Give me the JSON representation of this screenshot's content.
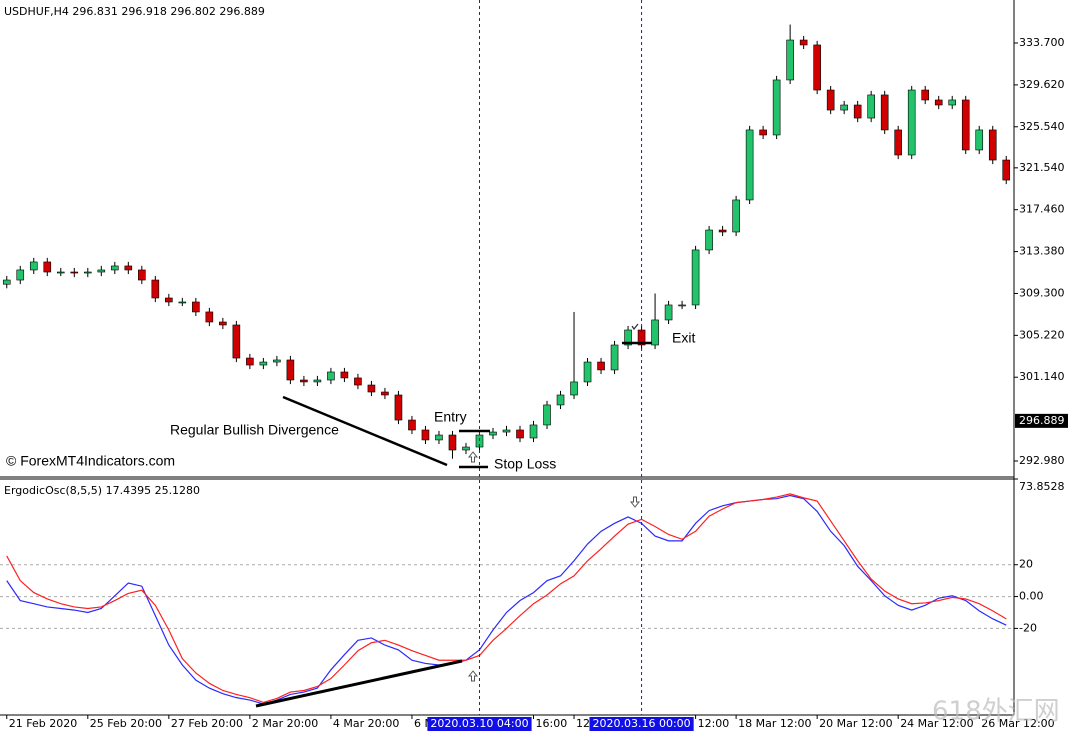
{
  "chart_data": [
    {
      "type": "candlestick",
      "title": "USDHUF,H4  296.831 296.918 296.802 296.889",
      "x": [
        "21 Feb 2020",
        null,
        null,
        null,
        null,
        null,
        "25 Feb 20:00",
        null,
        null,
        null,
        null,
        null,
        "27 Feb 20:00",
        null,
        null,
        null,
        null,
        null,
        "2 Mar 20:00",
        null,
        null,
        null,
        null,
        null,
        "4 Mar 20:00",
        null,
        null,
        null,
        null,
        null,
        "6 M",
        null,
        null,
        null,
        null,
        "2020.03.10 04:00",
        null,
        null,
        null,
        "16:00",
        null,
        null,
        "12",
        null,
        null,
        null,
        null,
        "2020.03.16 00:00",
        null,
        null,
        null,
        "12:00",
        null,
        null,
        "18 Mar 12:00",
        null,
        null,
        null,
        null,
        null,
        "20 Mar 12:00",
        null,
        null,
        null,
        null,
        null,
        "24 Mar 12:00",
        null,
        null,
        null,
        null,
        null,
        "26 Mar 12:00",
        null,
        null
      ],
      "cursor": [
        "2020.03.10 04:00",
        "2020.03.16 00:00"
      ],
      "open": [
        310.2,
        310.61,
        311.59,
        312.37,
        311.39,
        311.39,
        311.29,
        311.39,
        311.59,
        311.98,
        311.59,
        310.61,
        308.86,
        308.47,
        308.47,
        307.5,
        306.52,
        306.23,
        303.01,
        302.33,
        302.62,
        302.82,
        300.87,
        300.68,
        300.87,
        301.65,
        301.07,
        300.38,
        299.7,
        299.41,
        296.97,
        296.0,
        295.03,
        295.51,
        294.05,
        294.34,
        295.51,
        295.8,
        296.0,
        295.22,
        296.49,
        298.44,
        299.41,
        300.68,
        302.62,
        301.85,
        304.28,
        305.74,
        304.28,
        306.72,
        308.18,
        308.18,
        313.54,
        315.48,
        315.29,
        318.41,
        325.23,
        324.74,
        330.1,
        333.99,
        333.51,
        329.12,
        327.17,
        327.66,
        326.39,
        328.64,
        325.23,
        322.79,
        329.12,
        328.15,
        327.66,
        328.15,
        323.28,
        325.23,
        322.3
      ],
      "high": [
        311.01,
        311.99,
        312.77,
        312.77,
        311.79,
        311.79,
        311.79,
        311.99,
        312.38,
        312.38,
        311.99,
        311.01,
        309.26,
        308.87,
        308.87,
        307.9,
        306.92,
        306.63,
        303.41,
        303.02,
        303.22,
        303.22,
        301.27,
        301.27,
        302.05,
        302.05,
        301.47,
        300.78,
        300.1,
        299.81,
        297.37,
        296.4,
        295.91,
        295.91,
        294.74,
        295.91,
        296.2,
        296.4,
        296.4,
        296.89,
        298.84,
        299.81,
        307.5,
        303.02,
        303.02,
        304.68,
        306.14,
        306.14,
        309.3,
        308.58,
        308.58,
        313.94,
        315.88,
        315.88,
        318.81,
        325.63,
        325.63,
        330.5,
        335.5,
        334.39,
        333.91,
        329.52,
        328.06,
        328.06,
        329.04,
        329.04,
        325.63,
        329.52,
        329.52,
        328.55,
        328.55,
        328.55,
        325.63,
        325.63,
        322.7
      ],
      "low": [
        309.8,
        310.21,
        311.19,
        310.99,
        310.99,
        310.89,
        310.89,
        310.99,
        311.19,
        311.19,
        310.21,
        308.46,
        308.07,
        308.07,
        307.1,
        306.12,
        305.83,
        302.61,
        301.93,
        301.93,
        302.22,
        300.47,
        300.28,
        300.28,
        300.47,
        300.67,
        299.98,
        299.3,
        299.01,
        296.57,
        295.6,
        294.63,
        294.63,
        293.2,
        293.65,
        293.94,
        295.11,
        295.4,
        294.82,
        294.82,
        296.09,
        298.04,
        299.01,
        300.28,
        301.45,
        301.45,
        303.88,
        303.88,
        303.88,
        306.32,
        307.78,
        307.78,
        313.14,
        314.89,
        314.89,
        318.01,
        324.34,
        324.34,
        329.7,
        333.11,
        328.72,
        326.77,
        326.77,
        325.99,
        325.99,
        324.83,
        322.39,
        322.39,
        327.75,
        327.26,
        327.26,
        322.88,
        322.88,
        321.9,
        319.95
      ],
      "close": [
        310.61,
        311.59,
        312.37,
        311.39,
        311.39,
        311.29,
        311.39,
        311.59,
        311.98,
        311.59,
        310.61,
        308.86,
        308.47,
        308.47,
        307.5,
        306.52,
        306.23,
        303.01,
        302.33,
        302.62,
        302.82,
        300.87,
        300.68,
        300.87,
        301.65,
        301.07,
        300.38,
        299.7,
        299.41,
        296.97,
        296.0,
        295.03,
        295.51,
        294.05,
        294.34,
        295.51,
        295.8,
        296.0,
        295.22,
        296.49,
        298.44,
        299.41,
        300.68,
        302.62,
        301.85,
        304.28,
        305.74,
        304.28,
        306.72,
        308.18,
        308.18,
        313.54,
        315.48,
        315.29,
        318.41,
        325.23,
        324.74,
        330.1,
        333.99,
        333.51,
        329.12,
        327.17,
        327.66,
        326.39,
        328.64,
        325.23,
        322.79,
        329.12,
        328.15,
        327.66,
        328.15,
        323.28,
        325.23,
        322.3,
        320.35
      ],
      "up_color": "#22c36a",
      "down_color": "#d10000",
      "ylim": [
        291.42,
        337.89
      ],
      "yticks": [
        {
          "value": 333.7,
          "label": "333.700"
        },
        {
          "value": 329.62,
          "label": "329.620"
        },
        {
          "value": 325.54,
          "label": "325.540"
        },
        {
          "value": 321.54,
          "label": "321.540"
        },
        {
          "value": 317.46,
          "label": "317.460"
        },
        {
          "value": 313.38,
          "label": "313.380"
        },
        {
          "value": 309.3,
          "label": "309.300"
        },
        {
          "value": 305.22,
          "label": "305.220"
        },
        {
          "value": 301.14,
          "label": "301.140"
        },
        {
          "value": 292.98,
          "label": "292.980"
        }
      ],
      "last_price": {
        "value": 296.889,
        "label": "296.889"
      },
      "grid": false,
      "annotations": {
        "divergence": "Regular Bullish Divergence",
        "entry": "Entry",
        "stop_loss": "Stop Loss",
        "exit": "Exit",
        "copyright": "© ForexMT4Indicators.com",
        "watermark": "618外汇网"
      }
    },
    {
      "type": "line",
      "title": "ErgodicOsc(8,5,5) 17.4395 25.1280",
      "series": [
        {
          "color": "#2a2aff",
          "values": [
            10,
            -2.5,
            -4.5,
            -6.5,
            -7.5,
            -8.5,
            -10,
            -7.5,
            0.5,
            8.5,
            6.5,
            -12,
            -30.5,
            -43,
            -52.5,
            -57.5,
            -61,
            -63.5,
            -65,
            -67.5,
            -65,
            -61.5,
            -60,
            -57.5,
            -46,
            -36.5,
            -27.5,
            -26,
            -30.5,
            -33.5,
            -40,
            -42,
            -43,
            -42,
            -40,
            -33.5,
            -21,
            -10,
            -2.5,
            2.5,
            10,
            13,
            22.5,
            33,
            41,
            46,
            50,
            46,
            38,
            35,
            35,
            46,
            54,
            57,
            59,
            60,
            61,
            61.5,
            63.5,
            61.5,
            53.5,
            41,
            32,
            19,
            10,
            0.5,
            -5.5,
            -8.5,
            -5.5,
            -1,
            0.5,
            -2.5,
            -9,
            -14,
            -18
          ]
        },
        {
          "color": "#ff2020",
          "values": [
            25.5,
            10,
            2.5,
            -1.5,
            -4.5,
            -6.5,
            -7.5,
            -6.5,
            -2.5,
            2,
            4,
            -5.5,
            -21,
            -39,
            -48,
            -54.5,
            -59,
            -61.5,
            -63.5,
            -66.5,
            -64,
            -60,
            -59,
            -56.5,
            -51.5,
            -43,
            -34,
            -29,
            -27.5,
            -30.5,
            -34,
            -37,
            -40,
            -40,
            -40,
            -37,
            -27.5,
            -20,
            -12,
            -4.5,
            1,
            8,
            13,
            22.5,
            30,
            38,
            45.5,
            48.5,
            44,
            39,
            36,
            41,
            50.5,
            55,
            59,
            60,
            61,
            62.5,
            64.5,
            62,
            60,
            47.5,
            35,
            22.5,
            11,
            3.5,
            -1.5,
            -4.5,
            -4,
            -2.5,
            -0.5,
            -1.5,
            -4.5,
            -9,
            -14
          ]
        }
      ],
      "ylim": [
        -74.4,
        73.8528
      ],
      "yticks": [
        {
          "value": 73.8528,
          "label": "73.8528"
        },
        20,
        {
          "value": 0,
          "label": "0.00"
        },
        -20
      ],
      "grid": true
    }
  ]
}
